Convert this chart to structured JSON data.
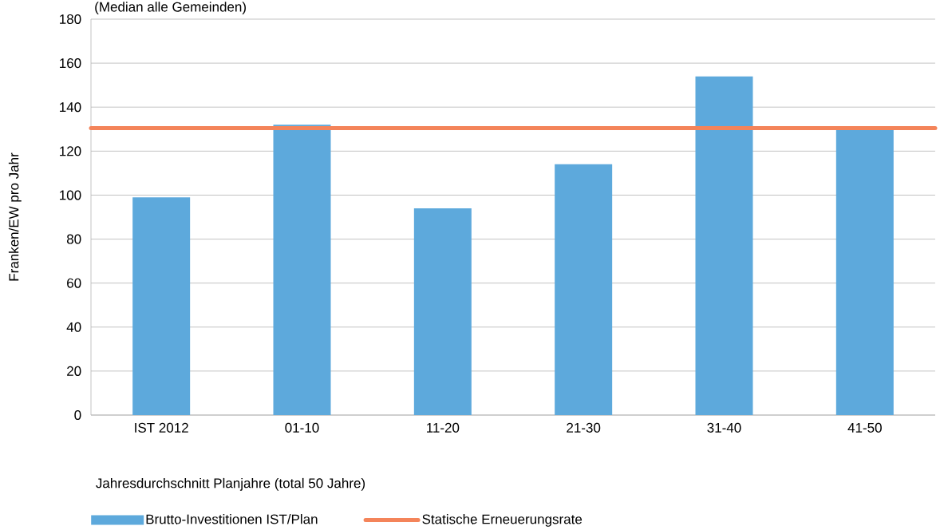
{
  "chart_data": {
    "type": "bar",
    "subtitle": "(Median alle Gemeinden)",
    "ylabel": "Franken/EW pro Jahr",
    "xlabel": "Jahresdurchschnitt Planjahre (total 50 Jahre)",
    "categories": [
      "IST 2012",
      "01-10",
      "11-20",
      "21-30",
      "31-40",
      "41-50"
    ],
    "series": [
      {
        "name": "Brutto-Investitionen IST/Plan",
        "color": "#5da9dc",
        "values": [
          99,
          132,
          94,
          114,
          154,
          130
        ]
      }
    ],
    "ref_lines": [
      {
        "axis": "y",
        "value": 130.5,
        "label": "Statische Erneuerungsrate",
        "color": "#f4845a"
      }
    ],
    "ylim": [
      0,
      180
    ],
    "yticks": [
      0,
      20,
      40,
      60,
      80,
      100,
      120,
      140,
      160,
      180
    ],
    "grid": "y",
    "legend": "bottom"
  }
}
